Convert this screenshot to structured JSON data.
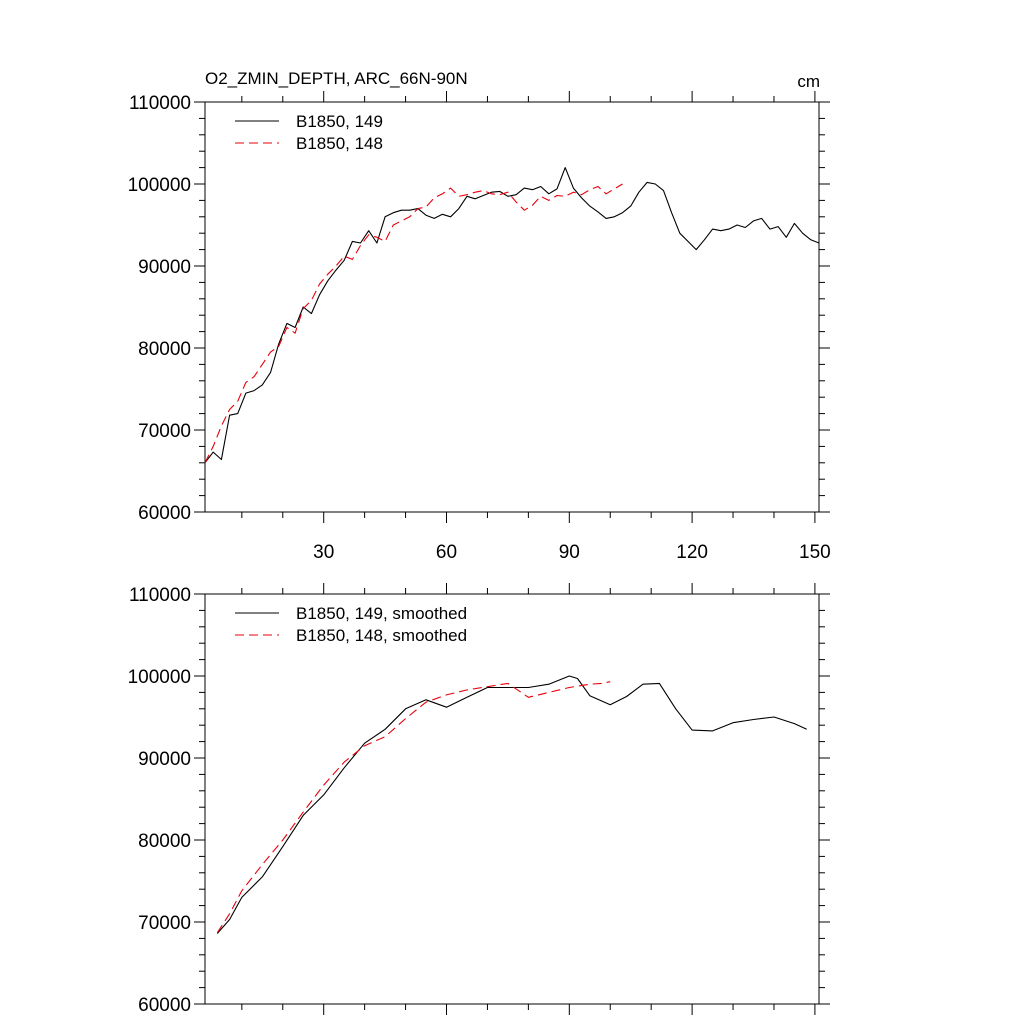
{
  "chart_data": [
    {
      "type": "line",
      "title": "O2_ZMIN_DEPTH, ARC_66N-90N",
      "units": "cm",
      "xlabel": "",
      "ylabel": "",
      "xlim": [
        1,
        151
      ],
      "ylim": [
        60000,
        110000
      ],
      "xticks": [
        30,
        60,
        90,
        120,
        150
      ],
      "xtick_labels": [
        "30",
        "60",
        "90",
        "120",
        "150"
      ],
      "yticks": [
        60000,
        70000,
        80000,
        90000,
        100000,
        110000
      ],
      "ytick_labels": [
        "60000",
        "70000",
        "80000",
        "90000",
        "100000",
        "110000"
      ],
      "legend_position": "top-left",
      "series": [
        {
          "name": "B1850, 149",
          "color": "#000000",
          "dash": "solid",
          "x": [
            1,
            3,
            5,
            7,
            9,
            11,
            13,
            15,
            17,
            19,
            21,
            23,
            25,
            27,
            29,
            31,
            33,
            35,
            37,
            39,
            41,
            43,
            45,
            47,
            49,
            51,
            53,
            55,
            57,
            59,
            61,
            63,
            65,
            67,
            69,
            71,
            73,
            75,
            77,
            79,
            81,
            83,
            85,
            87,
            89,
            91,
            93,
            95,
            97,
            99,
            101,
            103,
            105,
            107,
            109,
            111,
            113,
            115,
            117,
            119,
            121,
            123,
            125,
            127,
            129,
            131,
            133,
            135,
            137,
            139,
            141,
            143,
            145,
            147,
            149,
            151
          ],
          "y": [
            66000,
            67300,
            66400,
            71800,
            72000,
            74500,
            74800,
            75500,
            77000,
            80500,
            83000,
            82500,
            85000,
            84200,
            86500,
            88200,
            89500,
            90700,
            93000,
            92800,
            94300,
            92800,
            96000,
            96500,
            96800,
            96800,
            97000,
            96200,
            95800,
            96300,
            96000,
            97000,
            98500,
            98200,
            98600,
            99000,
            99100,
            98500,
            98700,
            99500,
            99300,
            99700,
            98800,
            99400,
            102000,
            99500,
            98300,
            97300,
            96600,
            95800,
            96000,
            96500,
            97300,
            99000,
            100200,
            100000,
            99200,
            96500,
            94000,
            93000,
            92000,
            93200,
            94500,
            94300,
            94500,
            95000,
            94700,
            95500,
            95800,
            94500,
            94800,
            93500,
            95200,
            94000,
            93200,
            92800
          ]
        },
        {
          "name": "B1850, 148",
          "color": "#e8000b",
          "dash": "dashed",
          "x": [
            1,
            3,
            5,
            7,
            9,
            11,
            13,
            15,
            17,
            19,
            21,
            23,
            25,
            27,
            29,
            31,
            33,
            35,
            37,
            39,
            41,
            43,
            45,
            47,
            49,
            51,
            53,
            55,
            57,
            59,
            61,
            63,
            65,
            67,
            69,
            71,
            73,
            75,
            77,
            79,
            81,
            83,
            85,
            87,
            89,
            91,
            93,
            95,
            97,
            99,
            101,
            103
          ],
          "y": [
            66000,
            68000,
            70500,
            72500,
            73500,
            75800,
            76500,
            78000,
            79500,
            80200,
            82500,
            81800,
            84800,
            85800,
            87800,
            89000,
            90000,
            91200,
            90800,
            92500,
            93800,
            93500,
            93000,
            95000,
            95500,
            96000,
            97000,
            97200,
            98300,
            98800,
            99500,
            98500,
            98700,
            99000,
            99200,
            98800,
            98700,
            99000,
            97800,
            96800,
            97400,
            98500,
            98000,
            98600,
            98500,
            99000,
            98700,
            99300,
            99700,
            98800,
            99400,
            100000
          ]
        }
      ]
    },
    {
      "type": "line",
      "title": "",
      "xlabel": "",
      "ylabel": "",
      "xlim": [
        1,
        151
      ],
      "ylim": [
        60000,
        110000
      ],
      "xticks": [
        30,
        60,
        90,
        120,
        150
      ],
      "yticks": [
        60000,
        70000,
        80000,
        90000,
        100000,
        110000
      ],
      "ytick_labels": [
        "60000",
        "70000",
        "80000",
        "90000",
        "100000",
        "110000"
      ],
      "legend_position": "top-left",
      "series": [
        {
          "name": "B1850, 149, smoothed",
          "color": "#000000",
          "dash": "solid",
          "x": [
            4,
            7,
            10,
            15,
            20,
            25,
            30,
            35,
            40,
            45,
            50,
            55,
            60,
            65,
            70,
            75,
            80,
            85,
            90,
            92,
            95,
            100,
            104,
            108,
            112,
            116,
            120,
            125,
            130,
            135,
            140,
            145,
            148
          ],
          "y": [
            68600,
            70300,
            73000,
            75500,
            79200,
            83000,
            85500,
            88800,
            91800,
            93500,
            96000,
            97100,
            96200,
            97400,
            98600,
            98600,
            98600,
            99000,
            100000,
            99700,
            97600,
            96500,
            97500,
            99000,
            99100,
            96000,
            93400,
            93300,
            94300,
            94700,
            95000,
            94200,
            93500
          ]
        },
        {
          "name": "B1850, 148, smoothed",
          "color": "#e8000b",
          "dash": "dashed",
          "x": [
            4,
            7,
            10,
            15,
            20,
            25,
            30,
            35,
            40,
            45,
            50,
            55,
            60,
            65,
            70,
            75,
            80,
            85,
            90,
            95,
            98,
            100
          ],
          "y": [
            68700,
            71000,
            73800,
            77000,
            80000,
            83400,
            86700,
            89500,
            91500,
            92600,
            94800,
            96800,
            97700,
            98300,
            98700,
            99100,
            97400,
            98000,
            98600,
            99000,
            99100,
            99300
          ]
        }
      ]
    }
  ]
}
